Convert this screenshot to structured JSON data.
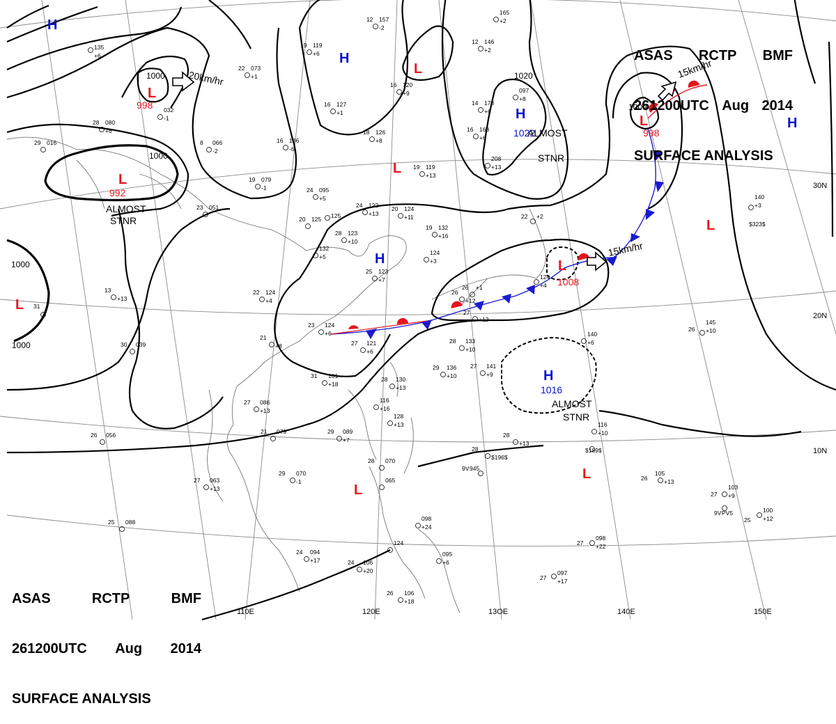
{
  "header": {
    "line1": [
      "ASAS",
      "RCTP",
      "BMF"
    ],
    "line2": [
      "261200UTC",
      "Aug",
      "2014"
    ],
    "line3": "SURFACE ANALYSIS"
  },
  "colors": {
    "high": "#0a14cc",
    "low": "#e8141e",
    "isobar": "#000000",
    "grid": "#8a8a8a",
    "coast": "#777777"
  },
  "lon_labels": [
    "110E",
    "120E",
    "13OE",
    "140E",
    "150E"
  ],
  "lat_labels": [
    "30N",
    "20N",
    "10N"
  ],
  "pressure_centers": [
    {
      "type": "H",
      "value": ""
    },
    {
      "type": "L",
      "value": "998"
    },
    {
      "type": "L",
      "value": "992"
    },
    {
      "type": "L",
      "value": ""
    },
    {
      "type": "H",
      "value": ""
    },
    {
      "type": "L",
      "value": ""
    },
    {
      "type": "L",
      "value": ""
    },
    {
      "type": "H",
      "value": "1022"
    },
    {
      "type": "L",
      "value": "998"
    },
    {
      "type": "H",
      "value": ""
    },
    {
      "type": "L",
      "value": ""
    },
    {
      "type": "H",
      "value": ""
    },
    {
      "type": "L",
      "value": "1008"
    },
    {
      "type": "H",
      "value": "1016"
    },
    {
      "type": "L",
      "value": ""
    },
    {
      "type": "L",
      "value": ""
    }
  ],
  "isobar_labels": [
    "1000",
    "1000",
    "1000",
    "1000",
    "1020",
    "1000"
  ],
  "annotations": {
    "almost_stnr": [
      "ALMOST",
      "STNR"
    ],
    "motion": [
      "20km/hr",
      "15km/hr",
      "15km/hr"
    ]
  },
  "stations": [
    {
      "t": "22",
      "p": "073",
      "d": "+1"
    },
    {
      "t": "19",
      "p": "119",
      "d": "+6"
    },
    {
      "t": "12",
      "p": "157",
      "d": "-2"
    },
    {
      "t": "",
      "p": "165",
      "d": "+2"
    },
    {
      "t": "12",
      "p": "146",
      "d": "+2"
    },
    {
      "t": "16",
      "p": "120",
      "d": "+9"
    },
    {
      "t": "14",
      "p": "173",
      "d": "+6"
    },
    {
      "t": "",
      "p": "097",
      "d": "+8"
    },
    {
      "t": "16",
      "p": "127",
      "d": "+1"
    },
    {
      "t": "16",
      "p": "168",
      "d": "+6"
    },
    {
      "t": "",
      "p": "208",
      "d": "+13"
    },
    {
      "t": "18",
      "p": "126",
      "d": "+8"
    },
    {
      "t": "19",
      "p": "119",
      "d": "+13"
    },
    {
      "t": "16",
      "p": "136",
      "d": "-6"
    },
    {
      "t": "8",
      "p": "066",
      "d": "-2"
    },
    {
      "t": "24",
      "p": "095",
      "d": "+5"
    },
    {
      "t": "",
      "p": "032",
      "d": "-1"
    },
    {
      "t": "28",
      "p": "080",
      "d": "+6"
    },
    {
      "t": "29",
      "p": "016",
      "d": ""
    },
    {
      "t": "19",
      "p": "079",
      "d": "-1"
    },
    {
      "t": "23",
      "p": "051",
      "d": ""
    },
    {
      "t": "24",
      "p": "122",
      "d": "+13"
    },
    {
      "t": "20",
      "p": "124",
      "d": "+11"
    },
    {
      "t": "20",
      "p": "125",
      "d": ""
    },
    {
      "t": "28",
      "p": "123",
      "d": "+10"
    },
    {
      "t": "19",
      "p": "132",
      "d": "+16"
    },
    {
      "t": "",
      "p": "132",
      "d": "+5"
    },
    {
      "t": "",
      "p": "124",
      "d": "+3"
    },
    {
      "t": "25",
      "p": "123",
      "d": "+7"
    },
    {
      "t": "22",
      "p": "124",
      "d": "+4"
    },
    {
      "t": "13",
      "p": "",
      "d": "+13"
    },
    {
      "t": "23",
      "p": "124",
      "d": "+6"
    },
    {
      "t": "27",
      "p": "121",
      "d": "+6"
    },
    {
      "t": "21",
      "p": "",
      "d": "+8"
    },
    {
      "t": "30",
      "p": "039",
      "d": ""
    },
    {
      "t": "26",
      "p": "",
      "d": "+12"
    },
    {
      "t": "31",
      "p": "101",
      "d": "+18"
    },
    {
      "t": "28",
      "p": "130",
      "d": "+13"
    },
    {
      "t": "",
      "p": "116",
      "d": "+16"
    },
    {
      "t": "28",
      "p": "133",
      "d": "+10"
    },
    {
      "t": "29",
      "p": "136",
      "d": "+10"
    },
    {
      "t": "27",
      "p": "141",
      "d": "+9"
    },
    {
      "t": "",
      "p": "128",
      "d": "+13"
    },
    {
      "t": "27",
      "p": "086",
      "d": "+13"
    },
    {
      "t": "21",
      "p": "079",
      "d": ""
    },
    {
      "t": "29",
      "p": "089",
      "d": "+7"
    },
    {
      "t": "26",
      "p": "056",
      "d": ""
    },
    {
      "t": "27",
      "p": "063",
      "d": "+13"
    },
    {
      "t": "29",
      "p": "070",
      "d": "-1"
    },
    {
      "t": "28",
      "p": "070",
      "d": ""
    },
    {
      "t": "",
      "p": "065",
      "d": ""
    },
    {
      "t": "",
      "p": "098",
      "d": "+24"
    },
    {
      "t": "",
      "p": "124",
      "d": ""
    },
    {
      "t": "24",
      "p": "094",
      "d": "+17"
    },
    {
      "t": "24",
      "p": "106",
      "d": "+20"
    },
    {
      "t": "",
      "p": "095",
      "d": "+6"
    },
    {
      "t": "26",
      "p": "106",
      "d": "+18"
    },
    {
      "t": "25",
      "p": "088",
      "d": ""
    },
    {
      "t": "28",
      "p": "",
      "d": "+13"
    },
    {
      "t": "28",
      "p": "",
      "d": "$196$"
    },
    {
      "t": "9V",
      "p": "945",
      "d": ""
    },
    {
      "t": "",
      "p": "116",
      "d": "+10"
    },
    {
      "t": "",
      "p": "",
      "d": "$189$"
    },
    {
      "t": "26",
      "p": "105",
      "d": "+13"
    },
    {
      "t": "27",
      "p": "103",
      "d": "+9"
    },
    {
      "t": "9V",
      "p": "PV5",
      "d": ""
    },
    {
      "t": "25",
      "p": "100",
      "d": "+12"
    },
    {
      "t": "27",
      "p": "098",
      "d": "+22"
    },
    {
      "t": "27",
      "p": "097",
      "d": "+17"
    },
    {
      "t": "",
      "p": "140",
      "d": "+6"
    },
    {
      "t": "26",
      "p": "145",
      "d": "+10"
    },
    {
      "t": "",
      "p": "140",
      "d": "+3"
    },
    {
      "t": "",
      "p": "",
      "d": "$323$"
    },
    {
      "t": "22",
      "p": "",
      "d": "+2"
    },
    {
      "t": "26",
      "p": "",
      "d": "+1"
    },
    {
      "t": "27",
      "p": "",
      "d": "+12"
    },
    {
      "t": "31",
      "p": "",
      "d": ""
    },
    {
      "t": "",
      "p": "124",
      "d": "+4"
    },
    {
      "t": "",
      "p": "125",
      "d": ""
    },
    {
      "t": "",
      "p": "135",
      "d": "+6"
    }
  ]
}
